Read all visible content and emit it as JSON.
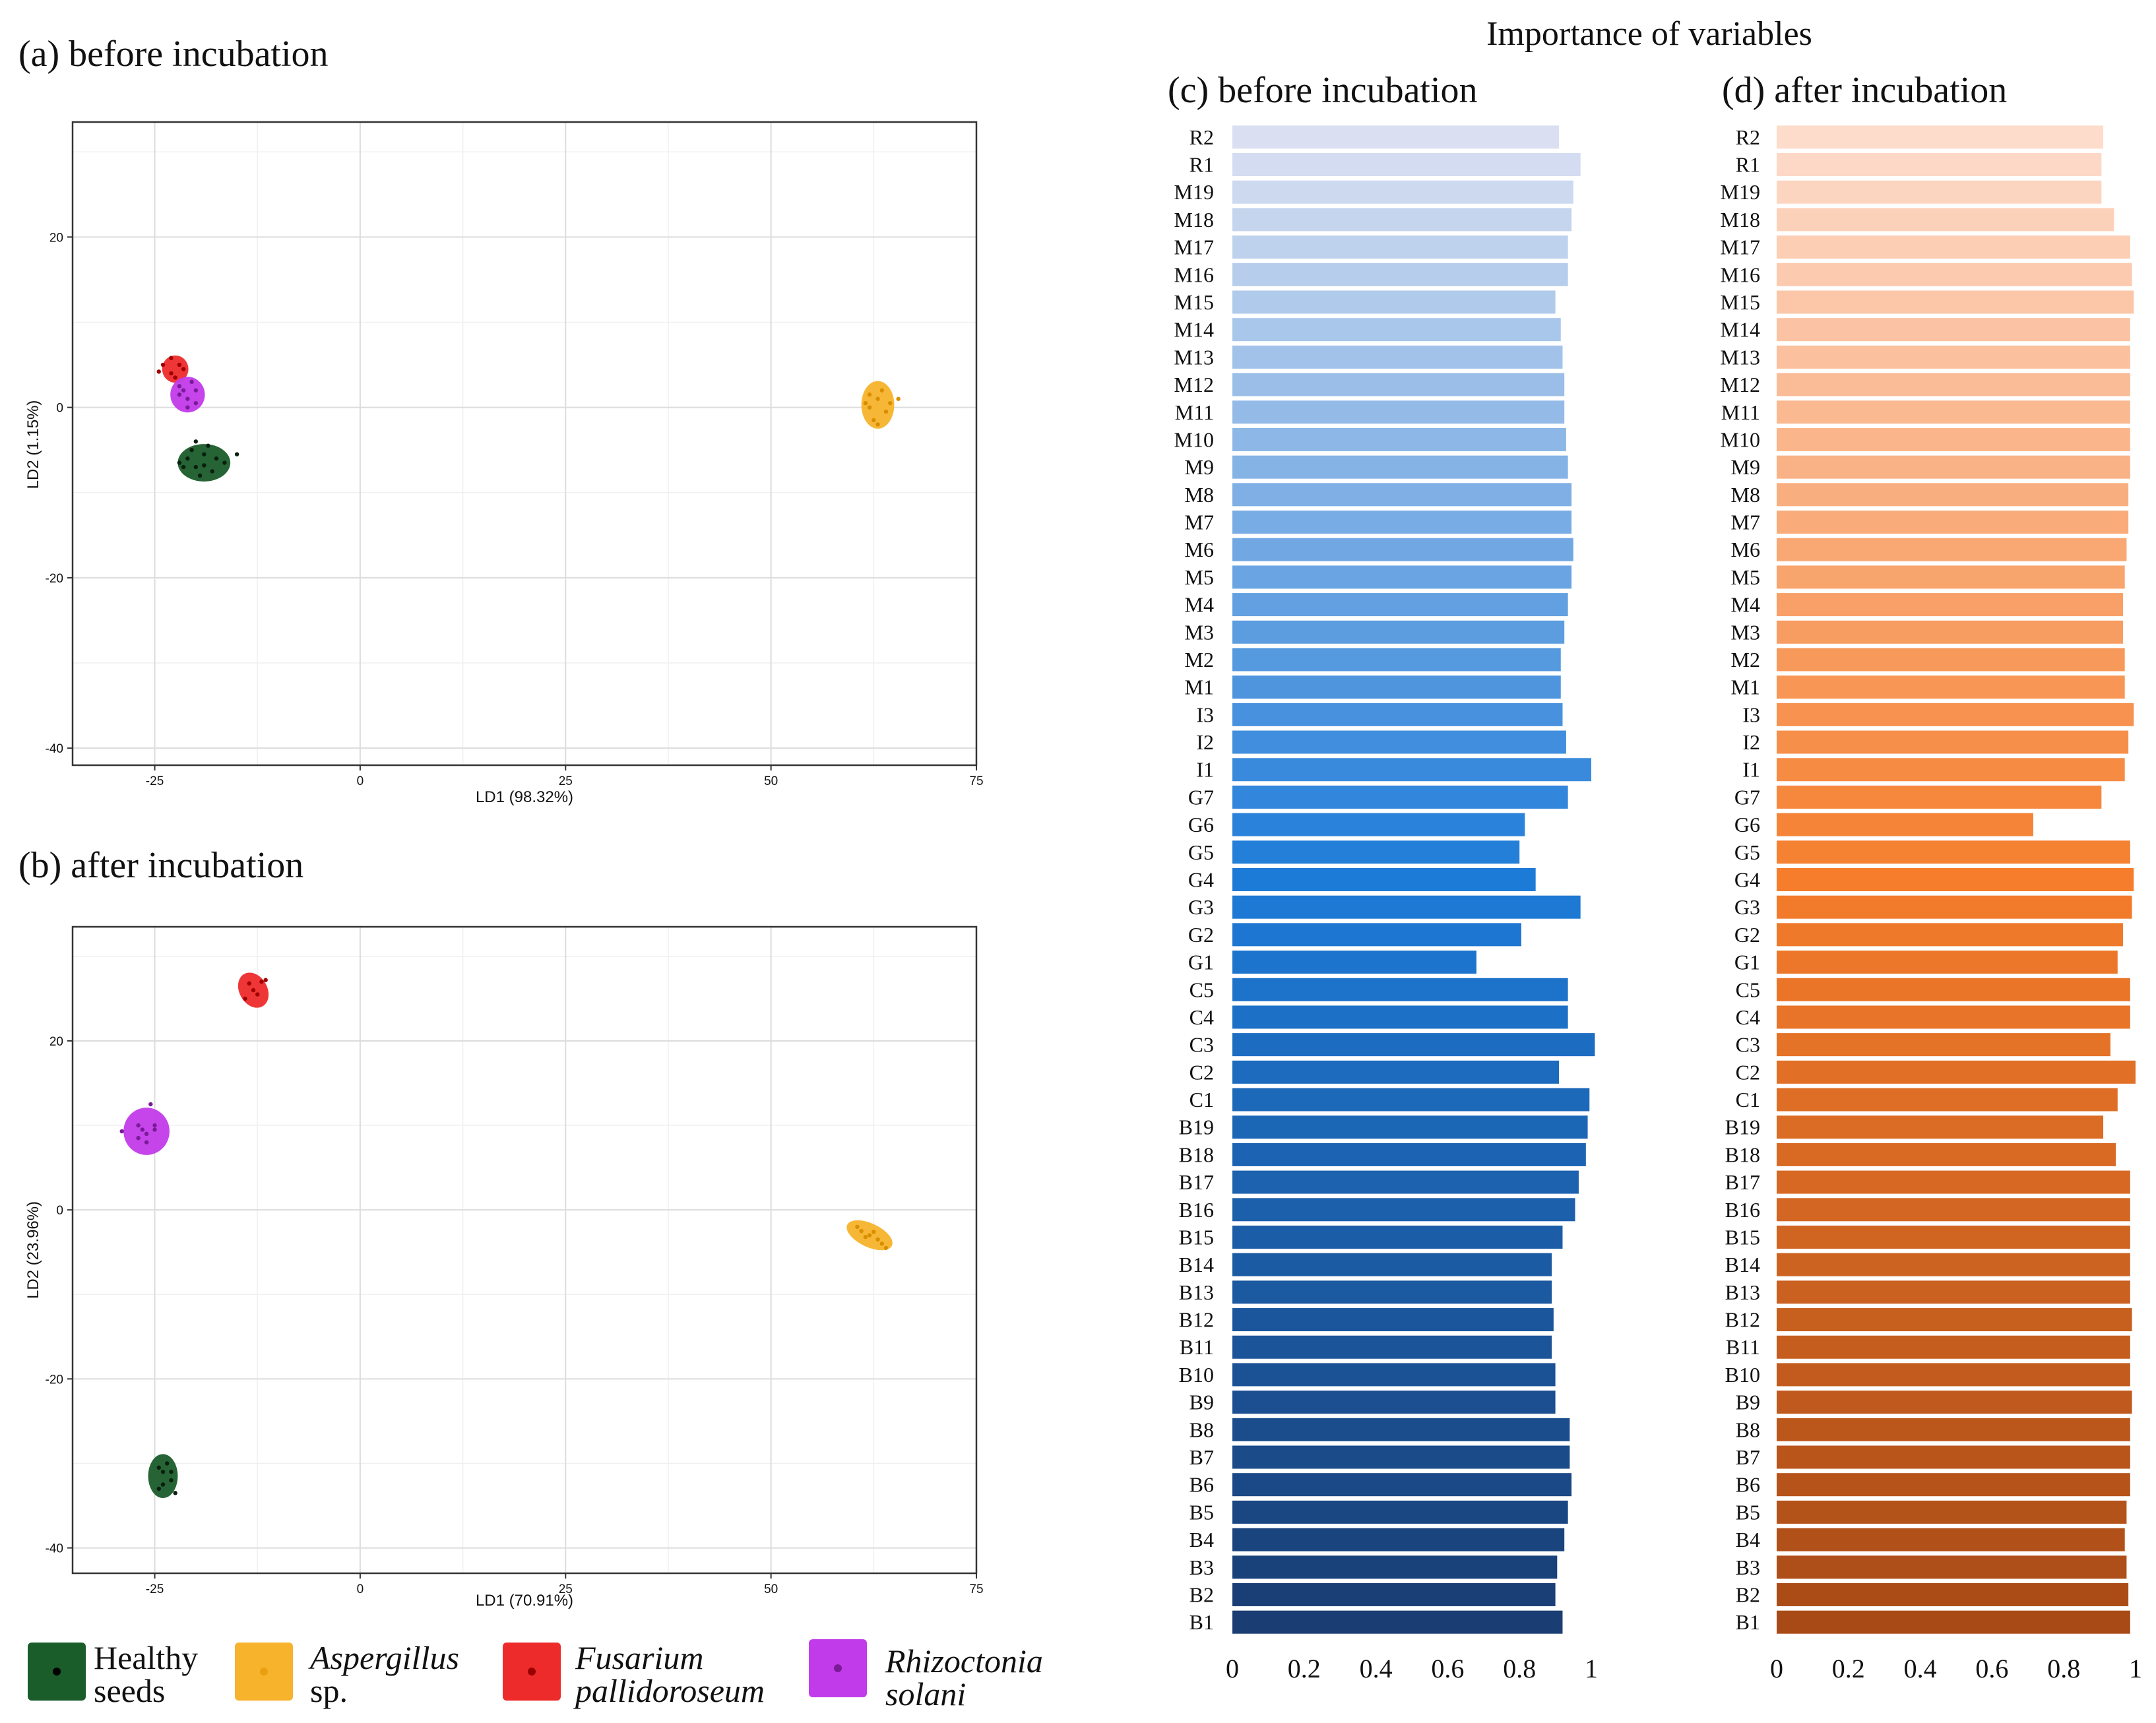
{
  "figure_title": "Importance of variables",
  "chart_data": [
    {
      "type": "scatter",
      "panel": "(a) before incubation",
      "title": "(a) before incubation",
      "xlabel": "LD1 (98.32%)",
      "ylabel": "LD2 (1.15%)",
      "xlim": [
        -35,
        75
      ],
      "ylim": [
        -42,
        33.5
      ],
      "xticks": [
        -25,
        0,
        25,
        50,
        75
      ],
      "yticks": [
        -40,
        -20,
        0,
        20
      ],
      "grid": true,
      "groups": [
        {
          "name": "Healthy seeds",
          "color": "#1a5c2a",
          "center": [
            -19,
            -6.5
          ],
          "spread": [
            3.2,
            2.2
          ],
          "points": [
            [
              -21,
              -6
            ],
            [
              -20,
              -7
            ],
            [
              -19,
              -5.5
            ],
            [
              -18,
              -7.5
            ],
            [
              -20.5,
              -5
            ],
            [
              -17.5,
              -6
            ],
            [
              -19.5,
              -8
            ],
            [
              -21.5,
              -7
            ],
            [
              -18.5,
              -4.5
            ],
            [
              -16.5,
              -6.5
            ],
            [
              -22,
              -6.5
            ],
            [
              -19,
              -6.8
            ],
            [
              -15,
              -5.5
            ],
            [
              -20,
              -4
            ]
          ]
        },
        {
          "name": "Aspergillus sp.",
          "color": "#f7b32b",
          "center": [
            63,
            0.3
          ],
          "spread": [
            2.0,
            2.8
          ],
          "points": [
            [
              62,
              0
            ],
            [
              63,
              1
            ],
            [
              64,
              -0.5
            ],
            [
              62.5,
              -1.5
            ],
            [
              63.5,
              2
            ],
            [
              62,
              1.5
            ],
            [
              64.5,
              0.5
            ],
            [
              63,
              -2
            ],
            [
              61.5,
              0.5
            ],
            [
              65.5,
              1
            ]
          ]
        },
        {
          "name": "Fusarium pallidoroseum",
          "color": "#ee2b2b",
          "center": [
            -22.5,
            4.5
          ],
          "spread": [
            1.6,
            1.6
          ],
          "points": [
            [
              -23,
              4
            ],
            [
              -22,
              5
            ],
            [
              -22.5,
              3.5
            ],
            [
              -21.5,
              4.5
            ],
            [
              -24,
              5
            ],
            [
              -23,
              5.8
            ],
            [
              -24.5,
              4.2
            ]
          ]
        },
        {
          "name": "Rhizoctonia solani",
          "color": "#c23bea",
          "center": [
            -21,
            1.5
          ],
          "spread": [
            2.1,
            2.1
          ],
          "points": [
            [
              -21,
              1
            ],
            [
              -20,
              2
            ],
            [
              -22,
              1.5
            ],
            [
              -21,
              0
            ],
            [
              -20.5,
              3
            ],
            [
              -22,
              2.5
            ],
            [
              -20,
              0.5
            ],
            [
              -21.5,
              2
            ]
          ]
        }
      ]
    },
    {
      "type": "scatter",
      "panel": "(b) after incubation",
      "title": "(b) after incubation",
      "xlabel": "LD1 (70.91%)",
      "ylabel": "LD2 (23.96%)",
      "xlim": [
        -35,
        75
      ],
      "ylim": [
        -43,
        33.5
      ],
      "xticks": [
        -25,
        0,
        25,
        50,
        75
      ],
      "yticks": [
        -40,
        -20,
        0,
        20
      ],
      "grid": true,
      "groups": [
        {
          "name": "Healthy seeds",
          "color": "#1a5c2a",
          "center": [
            -24,
            -31.5
          ],
          "spread": [
            1.8,
            2.6
          ],
          "points": [
            [
              -24,
              -31
            ],
            [
              -23,
              -32
            ],
            [
              -24.5,
              -33
            ],
            [
              -23.5,
              -30
            ],
            [
              -24,
              -32.5
            ],
            [
              -23,
              -31
            ],
            [
              -24.5,
              -30.5
            ],
            [
              -22.5,
              -33.5
            ]
          ]
        },
        {
          "name": "Aspergillus sp.",
          "color": "#f7b32b",
          "center": [
            62,
            -3
          ],
          "spread": [
            3.0,
            1.4
          ],
          "points": [
            [
              61,
              -2.5
            ],
            [
              62,
              -3
            ],
            [
              63,
              -3.5
            ],
            [
              60.5,
              -2
            ],
            [
              63.5,
              -4
            ],
            [
              61.5,
              -3.2
            ],
            [
              62.5,
              -2.6
            ],
            [
              64,
              -4.5
            ]
          ]
        },
        {
          "name": "Fusarium pallidoroseum",
          "color": "#ee2b2b",
          "center": [
            -13,
            26
          ],
          "spread": [
            1.7,
            2.2
          ],
          "points": [
            [
              -13,
              26
            ],
            [
              -12,
              27
            ],
            [
              -14,
              25
            ],
            [
              -12.5,
              25.5
            ],
            [
              -13.5,
              26.8
            ],
            [
              -11.5,
              27.2
            ]
          ]
        },
        {
          "name": "Rhizoctonia solani",
          "color": "#c23bea",
          "center": [
            -26,
            9.3
          ],
          "spread": [
            2.8,
            2.8
          ],
          "points": [
            [
              -26,
              9
            ],
            [
              -25,
              10
            ],
            [
              -27,
              8.5
            ],
            [
              -26,
              8
            ],
            [
              -25,
              9.5
            ],
            [
              -27,
              10
            ],
            [
              -26.5,
              9.5
            ],
            [
              -25.5,
              12.5
            ],
            [
              -29,
              9.3
            ]
          ]
        }
      ]
    },
    {
      "type": "bar",
      "orientation": "horizontal",
      "panel": "(c) before incubation",
      "title": "(c) before incubation",
      "xlim": [
        0,
        1
      ],
      "xticks": [
        "0",
        "0.2",
        "0.4",
        "0.6",
        "0.8",
        "1"
      ],
      "color_gradient": [
        "#dae0f1",
        "#1d7bd8",
        "#1a3d73"
      ],
      "categories": [
        "R2",
        "R1",
        "M19",
        "M18",
        "M17",
        "M16",
        "M15",
        "M14",
        "M13",
        "M12",
        "M11",
        "M10",
        "M9",
        "M8",
        "M7",
        "M6",
        "M5",
        "M4",
        "M3",
        "M2",
        "M1",
        "I3",
        "I2",
        "I1",
        "G7",
        "G6",
        "G5",
        "G4",
        "G3",
        "G2",
        "G1",
        "C5",
        "C4",
        "C3",
        "C2",
        "C1",
        "B19",
        "B18",
        "B17",
        "B16",
        "B15",
        "B14",
        "B13",
        "B12",
        "B11",
        "B10",
        "B9",
        "B8",
        "B7",
        "B6",
        "B5",
        "B4",
        "B3",
        "B2",
        "B1"
      ],
      "values": [
        0.91,
        0.97,
        0.95,
        0.945,
        0.935,
        0.935,
        0.9,
        0.915,
        0.92,
        0.925,
        0.925,
        0.93,
        0.935,
        0.945,
        0.945,
        0.95,
        0.945,
        0.935,
        0.925,
        0.915,
        0.915,
        0.92,
        0.93,
        1.0,
        0.935,
        0.815,
        0.8,
        0.845,
        0.97,
        0.805,
        0.68,
        0.935,
        0.935,
        1.01,
        0.91,
        0.995,
        0.99,
        0.985,
        0.965,
        0.955,
        0.92,
        0.89,
        0.89,
        0.895,
        0.89,
        0.9,
        0.9,
        0.94,
        0.94,
        0.945,
        0.935,
        0.925,
        0.905,
        0.9,
        0.92
      ]
    },
    {
      "type": "bar",
      "orientation": "horizontal",
      "panel": "(d) after incubation",
      "title": "(d) after incubation",
      "xlim": [
        0,
        1
      ],
      "xticks": [
        "0",
        "0.2",
        "0.4",
        "0.6",
        "0.8",
        "1"
      ],
      "color_gradient": [
        "#fddccc",
        "#f57d2c",
        "#a84a16"
      ],
      "categories": [
        "R2",
        "R1",
        "M19",
        "M18",
        "M17",
        "M16",
        "M15",
        "M14",
        "M13",
        "M12",
        "M11",
        "M10",
        "M9",
        "M8",
        "M7",
        "M6",
        "M5",
        "M4",
        "M3",
        "M2",
        "M1",
        "I3",
        "I2",
        "I1",
        "G7",
        "G6",
        "G5",
        "G4",
        "G3",
        "G2",
        "G1",
        "C5",
        "C4",
        "C3",
        "C2",
        "C1",
        "B19",
        "B18",
        "B17",
        "B16",
        "B15",
        "B14",
        "B13",
        "B12",
        "B11",
        "B10",
        "B9",
        "B8",
        "B7",
        "B6",
        "B5",
        "B4",
        "B3",
        "B2",
        "B1"
      ],
      "values": [
        0.91,
        0.905,
        0.905,
        0.94,
        0.985,
        0.99,
        0.995,
        0.985,
        0.985,
        0.985,
        0.985,
        0.985,
        0.985,
        0.98,
        0.98,
        0.975,
        0.97,
        0.965,
        0.965,
        0.97,
        0.97,
        0.995,
        0.98,
        0.97,
        0.905,
        0.715,
        0.985,
        0.995,
        0.99,
        0.965,
        0.95,
        0.985,
        0.985,
        0.93,
        1.0,
        0.95,
        0.91,
        0.945,
        0.985,
        0.985,
        0.985,
        0.985,
        0.985,
        0.99,
        0.985,
        0.985,
        0.99,
        0.985,
        0.985,
        0.985,
        0.975,
        0.97,
        0.975,
        0.98,
        0.985
      ]
    }
  ],
  "legend": [
    {
      "line1": "Healthy",
      "line2": "seeds",
      "italic": false,
      "color": "#1a5c2a"
    },
    {
      "line1": "Aspergillus",
      "line2": "sp.",
      "italic": true,
      "italic2": false,
      "color": "#f7b32b"
    },
    {
      "line1": "Fusarium",
      "line2": "pallidoroseum",
      "italic": true,
      "italic2": true,
      "color": "#ee2b2b"
    },
    {
      "line1": "Rhizoctonia",
      "line2": "solani",
      "italic": true,
      "italic2": true,
      "color": "#c23bea"
    }
  ]
}
